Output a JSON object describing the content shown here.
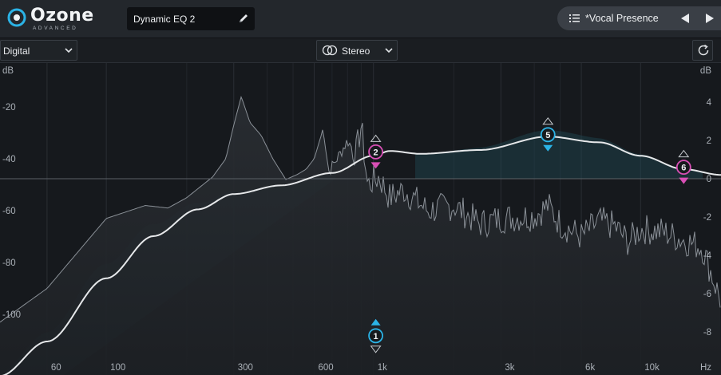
{
  "app": {
    "logo_name": "Ozone",
    "logo_sub": "ADVANCED",
    "module_name": "Dynamic EQ 2",
    "preset_name": "*Vocal Presence"
  },
  "controls": {
    "mode_label": "Digital",
    "channel_label": "Stereo"
  },
  "graph": {
    "left_unit": "dB",
    "right_unit": "dB",
    "left_ticks": [
      {
        "label": "-20",
        "value": -20
      },
      {
        "label": "-40",
        "value": -40
      },
      {
        "label": "-60",
        "value": -60
      },
      {
        "label": "-80",
        "value": -80
      },
      {
        "label": "-100",
        "value": -100
      }
    ],
    "right_ticks": [
      {
        "label": "4",
        "value": 4
      },
      {
        "label": "2",
        "value": 2
      },
      {
        "label": "0",
        "value": 0
      },
      {
        "label": "-2",
        "value": -2
      },
      {
        "label": "-4",
        "value": -4
      },
      {
        "label": "-6",
        "value": -6
      },
      {
        "label": "-8",
        "value": -8
      }
    ],
    "freq_ticks": [
      {
        "label": "60",
        "hz": 60
      },
      {
        "label": "100",
        "hz": 100
      },
      {
        "label": "300",
        "hz": 300
      },
      {
        "label": "600",
        "hz": 600
      },
      {
        "label": "1k",
        "hz": 1000
      },
      {
        "label": "3k",
        "hz": 3000
      },
      {
        "label": "6k",
        "hz": 6000
      },
      {
        "label": "10k",
        "hz": 10000
      }
    ],
    "freq_unit": "Hz",
    "minor_grid_hz": [
      200,
      400,
      500,
      700,
      800,
      900,
      2000,
      4000,
      5000
    ],
    "nodes": [
      {
        "id": "1",
        "label": "1",
        "hz": 1020,
        "gain_db": -8.2,
        "color": "#2bb3e6",
        "filled_arrow": "up"
      },
      {
        "id": "2",
        "label": "2",
        "hz": 1020,
        "gain_db": 1.4,
        "color": "#d94fb6",
        "filled_arrow": "down"
      },
      {
        "id": "5",
        "label": "5",
        "hz": 4500,
        "gain_db": 2.3,
        "color": "#2bb3e6",
        "filled_arrow": "down"
      },
      {
        "id": "6",
        "label": "6",
        "hz": 14500,
        "gain_db": 0.6,
        "color": "#d94fb6",
        "filled_arrow": "down"
      }
    ],
    "colors": {
      "eq_curve": "#e6e8ea",
      "spectrum": "#8a9097",
      "zero_line": "#5c6168",
      "band_fill": "#1f4a55"
    }
  }
}
